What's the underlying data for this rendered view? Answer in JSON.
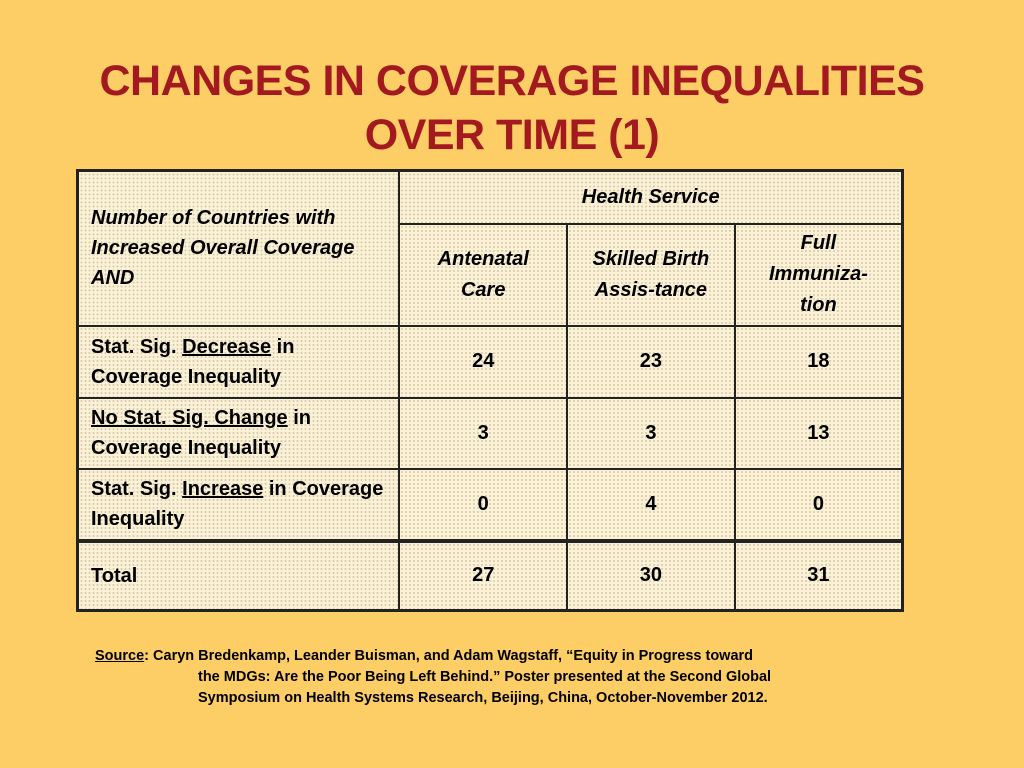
{
  "title": {
    "line1": "CHANGES IN COVERAGE INEQUALITIES",
    "line2": "OVER TIME (1)"
  },
  "table": {
    "corner_label": "Number of Countries with Increased Overall Coverage AND",
    "group_header": "Health Service",
    "columns": [
      "Antenatal Care",
      "Skilled Birth Assis-tance",
      "Full Immuniza-tion"
    ],
    "rows": [
      {
        "label_prefix": "Stat. Sig.",
        "label_emph": "Decrease",
        "label_suffix": "in Coverage Inequality",
        "values": [
          "24",
          "23",
          "18"
        ]
      },
      {
        "label_prefix": "",
        "label_emph": "No Stat. Sig. Change",
        "label_suffix": "in Coverage Inequality",
        "values": [
          "3",
          "3",
          "13"
        ]
      },
      {
        "label_prefix": "Stat. Sig.",
        "label_emph": "Increase",
        "label_suffix": "in Coverage Inequality",
        "values": [
          "0",
          "4",
          "0"
        ]
      }
    ],
    "total": {
      "label": "Total",
      "values": [
        "27",
        "30",
        "31"
      ]
    }
  },
  "source": {
    "label": "Source",
    "line1": ":  Caryn Bredenkamp, Leander Buisman, and Adam Wagstaff, “Equity in Progress toward",
    "line2": "the MDGs:  Are the Poor Being Left Behind.” Poster presented at the Second Global",
    "line3": "Symposium on Health Systems Research, Beijing, China, October-November 2012."
  }
}
